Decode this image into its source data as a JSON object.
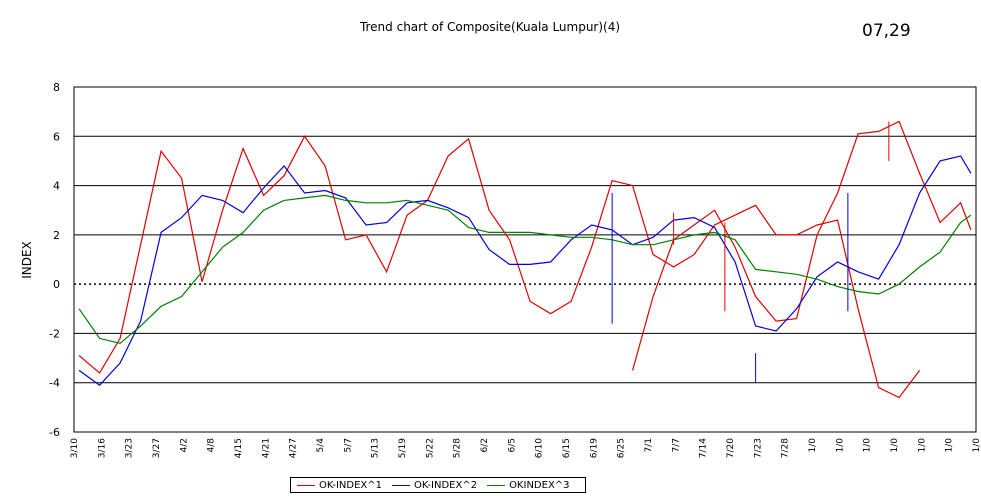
{
  "header": {
    "title": "Trend chart of Composite(Kuala Lumpur)(4)",
    "date_stamp": "07,29"
  },
  "chart_data": {
    "type": "line",
    "title": "Trend chart of Composite(Kuala Lumpur)(4)",
    "xlabel": "",
    "ylabel": "INDEX",
    "ylim": [
      -6,
      8
    ],
    "yticks": [
      -6,
      -4,
      -2,
      0,
      2,
      4,
      6,
      8
    ],
    "grid": true,
    "zero_line": "dotted",
    "legend_position": "bottom",
    "x_tick_labels": [
      "3/10",
      "3/16",
      "3/23",
      "3/27",
      "4/2",
      "4/8",
      "4/15",
      "4/21",
      "4/27",
      "5/4",
      "5/7",
      "5/13",
      "5/19",
      "5/22",
      "5/28",
      "6/2",
      "6/5",
      "6/10",
      "6/15",
      "6/19",
      "6/25",
      "7/1",
      "7/7",
      "7/14",
      "7/20",
      "7/23",
      "7/28",
      "1/0",
      "1/0",
      "1/0",
      "1/0",
      "1/0",
      "1/0",
      "1/0"
    ],
    "x_count": 88,
    "series": [
      {
        "name": "OK-INDEX^1",
        "color": "#e00000",
        "x": [
          0,
          2,
          4,
          6,
          8,
          10,
          12,
          14,
          16,
          18,
          20,
          22,
          24,
          26,
          28,
          30,
          32,
          34,
          36,
          38,
          40,
          42,
          44,
          46,
          48,
          50,
          52,
          54,
          56,
          58,
          60,
          62,
          64,
          66,
          68,
          70,
          72,
          74,
          76,
          78,
          80,
          82
        ],
        "values": [
          -2.9,
          -3.6,
          -2.2,
          1.6,
          5.4,
          4.3,
          0.1,
          3.0,
          5.5,
          3.6,
          4.4,
          6.0,
          4.8,
          1.8,
          2.0,
          0.5,
          2.8,
          3.4,
          5.2,
          5.9,
          3.0,
          1.8,
          -0.7,
          -1.2,
          -0.7,
          1.5,
          4.2,
          4.0,
          1.2,
          0.7,
          1.2,
          2.4,
          2.8,
          3.2,
          2.0,
          2.0,
          2.4,
          2.6,
          -1.0,
          -4.2,
          -4.6,
          -3.5
        ],
        "x2": [
          54,
          56,
          58,
          60,
          62,
          64,
          66,
          68,
          70,
          72,
          74,
          76,
          78,
          80,
          82,
          84,
          86,
          87
        ],
        "values2": [
          -3.5,
          -0.5,
          1.8,
          2.4,
          3.0,
          1.5,
          -0.5,
          -1.5,
          -1.4,
          2.0,
          3.7,
          6.1,
          6.2,
          6.6,
          4.5,
          2.5,
          3.3,
          2.2
        ],
        "spikes": [
          [
            1.5,
            1.6
          ],
          [
            3.0,
            3.7
          ]
        ]
      },
      {
        "name": "OK-INDEX^2",
        "color": "#0000dd",
        "x": [
          0,
          2,
          4,
          6,
          8,
          10,
          12,
          14,
          16,
          18,
          20,
          22,
          24,
          26,
          28,
          30,
          32,
          34,
          36,
          38,
          40,
          42,
          44,
          46,
          48,
          50,
          52,
          54,
          56,
          58,
          60,
          62,
          64,
          66,
          68,
          70,
          72,
          74,
          76,
          78,
          80,
          82,
          84,
          86,
          87
        ],
        "values": [
          -3.5,
          -4.1,
          -3.2,
          -1.5,
          2.1,
          2.7,
          3.6,
          3.4,
          2.9,
          3.9,
          4.8,
          3.7,
          3.8,
          3.5,
          2.4,
          2.5,
          3.3,
          3.4,
          3.1,
          2.7,
          1.4,
          0.8,
          0.8,
          0.9,
          1.8,
          2.4,
          2.2,
          1.6,
          1.9,
          2.6,
          2.7,
          2.3,
          0.9,
          -1.7,
          -1.9,
          -1.0,
          0.3,
          0.9,
          0.5,
          0.2,
          1.6,
          3.7,
          5.0,
          5.2,
          4.5
        ]
      },
      {
        "name": "OKINDEX^3",
        "color": "#008000",
        "x": [
          0,
          2,
          4,
          6,
          8,
          10,
          12,
          14,
          16,
          18,
          20,
          22,
          24,
          26,
          28,
          30,
          32,
          34,
          36,
          38,
          40,
          42,
          44,
          46,
          48,
          50,
          52,
          54,
          56,
          58,
          60,
          62,
          64,
          66,
          68,
          70,
          72,
          74,
          76,
          78,
          80,
          82,
          84,
          86,
          87
        ],
        "values": [
          -1.0,
          -2.2,
          -2.4,
          -1.7,
          -0.9,
          -0.5,
          0.5,
          1.5,
          2.1,
          3.0,
          3.4,
          3.5,
          3.6,
          3.4,
          3.3,
          3.3,
          3.4,
          3.2,
          3.0,
          2.3,
          2.1,
          2.1,
          2.1,
          2.0,
          1.9,
          1.9,
          1.8,
          1.6,
          1.6,
          1.8,
          2.0,
          2.1,
          1.8,
          0.6,
          0.5,
          0.4,
          0.2,
          -0.1,
          -0.3,
          -0.4,
          0.0,
          0.7,
          1.3,
          2.5,
          2.8
        ]
      }
    ],
    "vertical_markers": [
      {
        "x": 52,
        "y_from": -1.6,
        "y_to": 3.7,
        "color": "#0000dd"
      },
      {
        "x": 75,
        "y_from": -1.1,
        "y_to": 3.7,
        "color": "#0000dd"
      },
      {
        "x": 66,
        "y_from": -4.0,
        "y_to": -2.8,
        "color": "#0000dd"
      },
      {
        "x": 63,
        "y_from": -1.1,
        "y_to": 2.5,
        "color": "#e00000"
      },
      {
        "x": 79,
        "y_from": 5.0,
        "y_to": 6.6,
        "color": "#e00000"
      },
      {
        "x": 58,
        "y_from": 1.6,
        "y_to": 2.9,
        "color": "#e00000"
      }
    ]
  },
  "legend": {
    "items": [
      {
        "label": "OK-INDEX^1",
        "color": "#e00000"
      },
      {
        "label": "OK-INDEX^2",
        "color": "#0000dd"
      },
      {
        "label": "OKINDEX^3",
        "color": "#008000"
      }
    ]
  }
}
